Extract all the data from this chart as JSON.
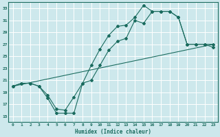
{
  "xlabel": "Humidex (Indice chaleur)",
  "ylabel": "",
  "bg_color": "#cde8ec",
  "grid_color": "#ffffff",
  "line_color": "#1a6b5e",
  "xlim": [
    -0.5,
    23.5
  ],
  "ylim": [
    14.0,
    34.0
  ],
  "yticks": [
    15,
    17,
    19,
    21,
    23,
    25,
    27,
    29,
    31,
    33
  ],
  "xticks": [
    0,
    1,
    2,
    3,
    4,
    5,
    6,
    7,
    8,
    9,
    10,
    11,
    12,
    13,
    14,
    15,
    16,
    17,
    18,
    19,
    20,
    21,
    22,
    23
  ],
  "line1_x": [
    0,
    1,
    2,
    3,
    4,
    5,
    6,
    7,
    8,
    9,
    10,
    11,
    12,
    13,
    14,
    15,
    16,
    17,
    18,
    19,
    20,
    21,
    22,
    23
  ],
  "line1_y": [
    20,
    20.5,
    20.5,
    20,
    18.5,
    16.2,
    16.0,
    18.2,
    20.5,
    23.5,
    26.2,
    28.5,
    30.0,
    30.2,
    31.5,
    33.5,
    32.5,
    32.5,
    32.5,
    31.5,
    27.0,
    27.0,
    27.0,
    26.5
  ],
  "line2_x": [
    0,
    1,
    2,
    3,
    4,
    5,
    6,
    7,
    8,
    9,
    10,
    11,
    12,
    13,
    14,
    15,
    16,
    17,
    18,
    19,
    20,
    21,
    22,
    23
  ],
  "line2_y": [
    20,
    20.5,
    20.5,
    20,
    18.0,
    15.5,
    15.5,
    15.5,
    20.5,
    21.0,
    23.5,
    26.0,
    27.5,
    28.0,
    31.0,
    30.5,
    32.5,
    32.5,
    32.5,
    31.5,
    27.0,
    27.0,
    27.0,
    27.0
  ],
  "line3_x": [
    0,
    23
  ],
  "line3_y": [
    20,
    27
  ]
}
